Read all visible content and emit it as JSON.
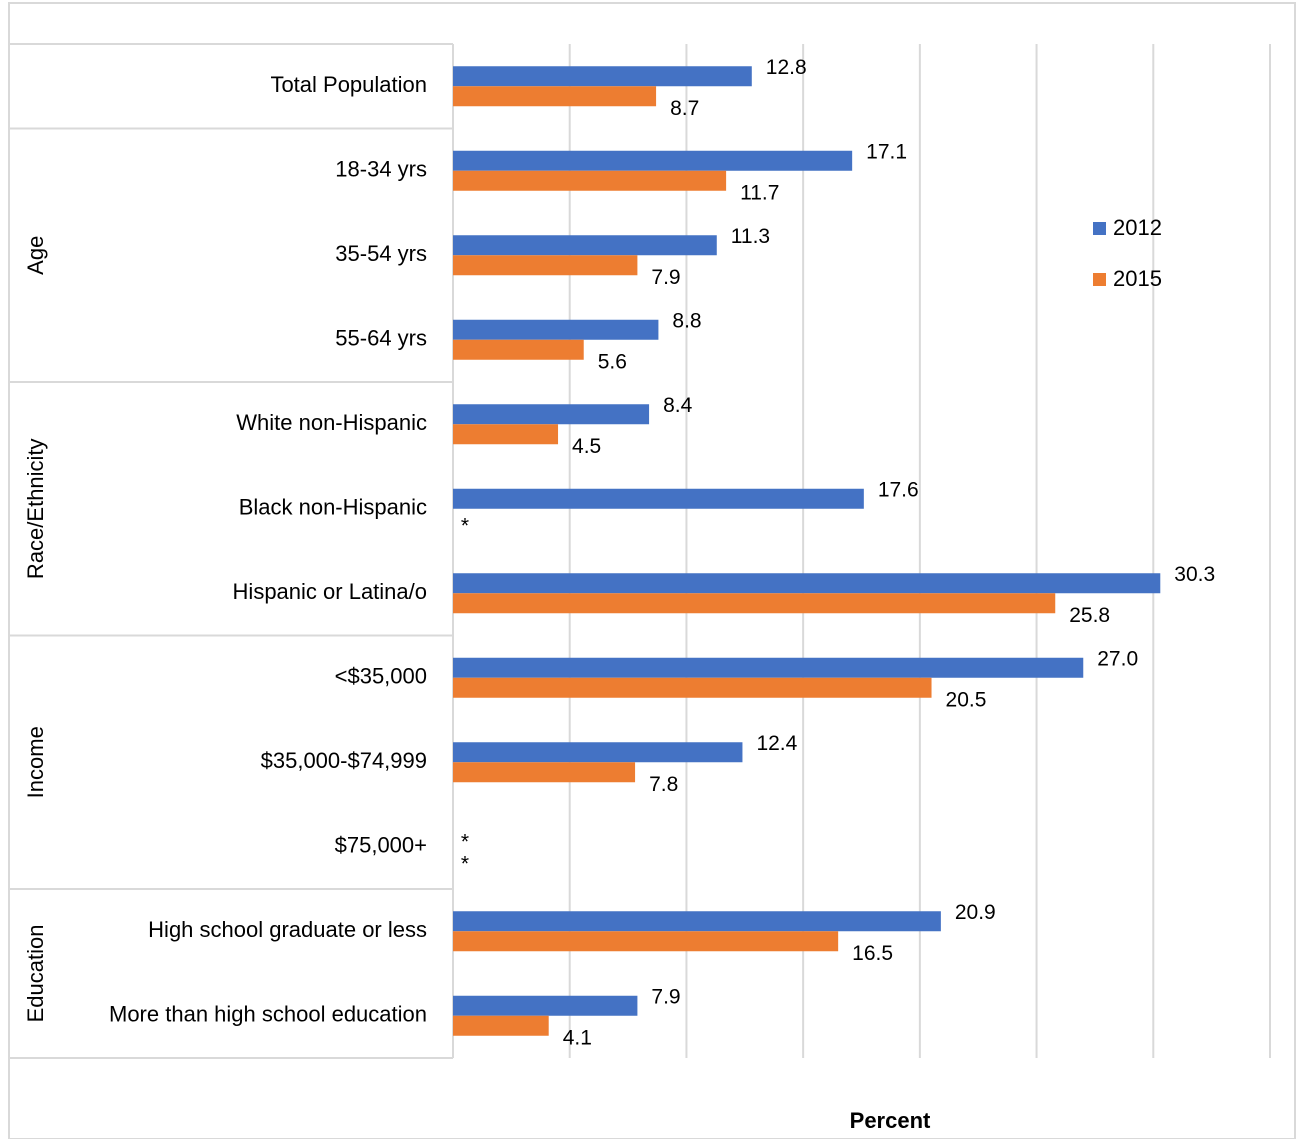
{
  "chart_data": {
    "type": "bar",
    "orientation": "horizontal",
    "xlabel": "Percent",
    "xlim": [
      0,
      35
    ],
    "grid": true,
    "legend": "right",
    "groups": [
      {
        "name": "",
        "categories": [
          "Total Population"
        ]
      },
      {
        "name": "Age",
        "categories": [
          "18-34 yrs",
          "35-54 yrs",
          "55-64 yrs"
        ]
      },
      {
        "name": "Race/Ethnicity",
        "categories": [
          "White non-Hispanic ",
          "Black non-Hispanic",
          "Hispanic or Latina/o"
        ]
      },
      {
        "name": "Income",
        "categories": [
          "<$35,000",
          "$35,000-$74,999",
          "$75,000+"
        ]
      },
      {
        "name": "Education",
        "categories": [
          "High school graduate or less",
          "More than high school education"
        ]
      }
    ],
    "categories": [
      "Total Population",
      "18-34 yrs",
      "35-54 yrs",
      "55-64 yrs",
      "White non-Hispanic ",
      "Black non-Hispanic",
      "Hispanic or Latina/o",
      "<$35,000",
      "$35,000-$74,999",
      "$75,000+",
      "High school graduate or less",
      "More than high school education"
    ],
    "series": [
      {
        "name": "2012",
        "color": "#4472C4",
        "values": [
          12.8,
          17.1,
          11.3,
          8.8,
          8.4,
          17.6,
          30.3,
          27.0,
          12.4,
          null,
          20.9,
          7.9
        ],
        "labels": [
          "12.8",
          "17.1",
          "11.3",
          "8.8",
          "8.4",
          "17.6",
          "30.3",
          "27.0",
          "12.4",
          "*",
          "20.9",
          "7.9"
        ]
      },
      {
        "name": "2015",
        "color": "#ED7D31",
        "values": [
          8.7,
          11.7,
          7.9,
          5.6,
          4.5,
          null,
          25.8,
          20.5,
          7.8,
          null,
          16.5,
          4.1
        ],
        "labels": [
          "8.7",
          "11.7",
          "7.9",
          "5.6",
          "4.5",
          "*",
          "25.8",
          "20.5",
          "7.8",
          "*",
          "16.5",
          "4.1"
        ]
      }
    ]
  }
}
